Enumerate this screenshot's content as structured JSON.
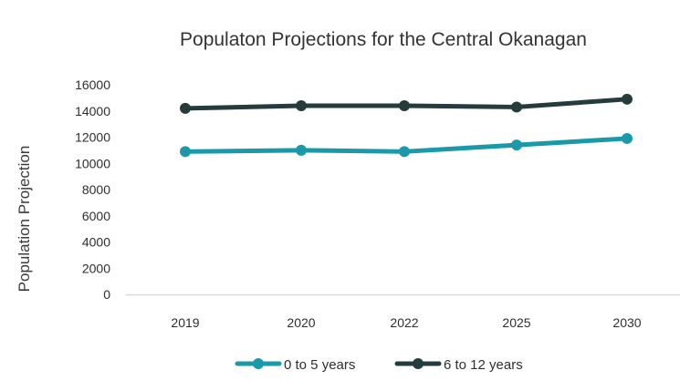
{
  "chart_data": {
    "type": "line",
    "title": "Populaton Projections for the Central Okanagan",
    "xlabel": "",
    "ylabel": "Population Projection",
    "categories": [
      "2019",
      "2020",
      "2022",
      "2025",
      "2030"
    ],
    "ylim": [
      0,
      16000
    ],
    "yticks": [
      "16000",
      "14000",
      "12000",
      "10000",
      "8000",
      "6000",
      "4000",
      "2000",
      "0"
    ],
    "grid": false,
    "legend_position": "bottom",
    "series": [
      {
        "name": "0 to 5 years",
        "color": "#1a9aa8",
        "values": [
          10900,
          11000,
          10900,
          11400,
          11900
        ]
      },
      {
        "name": "6 to 12 years",
        "color": "#253b3c",
        "values": [
          14200,
          14400,
          14400,
          14300,
          14900
        ]
      }
    ]
  }
}
